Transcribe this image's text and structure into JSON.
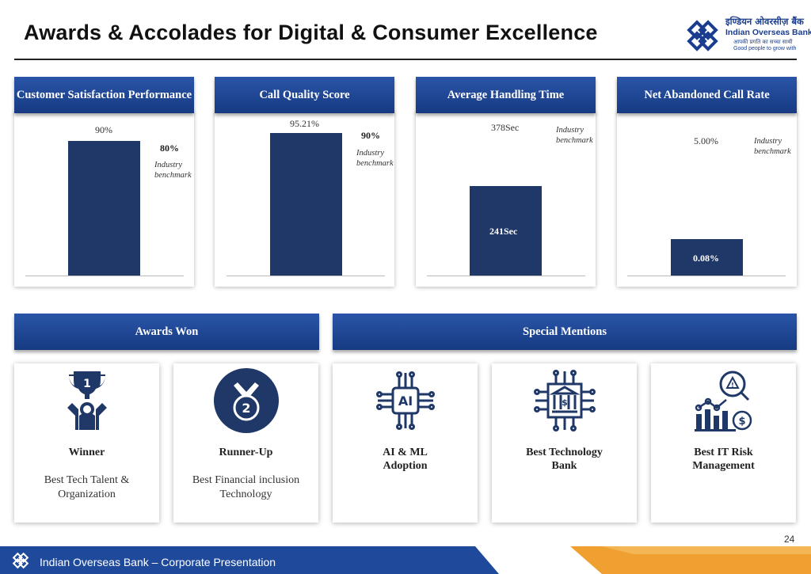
{
  "page": {
    "title": "Awards & Accolades for Digital & Consumer Excellence",
    "page_number": "24",
    "footer": "Indian Overseas Bank – Corporate Presentation"
  },
  "logo": {
    "hindi": "इण्डियन ओवरसीज़ बैंक",
    "english": "Indian Overseas Bank",
    "tagline_hindi": "आपकी प्रगति का सच्चा साथी",
    "tagline_english": "Good people to grow with"
  },
  "colors": {
    "brand_blue": "#1b3d8f",
    "bar": "#1f3868",
    "accent_orange": "#f0a030"
  },
  "metrics": [
    {
      "title": "Customer Satisfaction Performance",
      "value_label": "90%",
      "bench_label": "80%",
      "bench_text": "Industry benchmark"
    },
    {
      "title": "Call Quality Score",
      "value_label": "95.21%",
      "bench_label": "90%",
      "bench_text": "Industry benchmark"
    },
    {
      "title": "Average Handling Time",
      "value_label": "241Sec",
      "bench_label": "378Sec",
      "bench_text": "Industry benchmark"
    },
    {
      "title": "Net Abandoned Call Rate",
      "value_label": "0.08%",
      "bench_label": "5.00%",
      "bench_text": "Industry benchmark"
    }
  ],
  "sections": {
    "awards": "Awards Won",
    "mentions": "Special Mentions"
  },
  "awards": [
    {
      "icon": "trophy-icon",
      "title": "Winner",
      "subtitle": "Best Tech Talent & Organization"
    },
    {
      "icon": "medal-icon",
      "title": "Runner-Up",
      "subtitle": "Best Financial inclusion Technology"
    }
  ],
  "mentions": [
    {
      "icon": "ai-chip-icon",
      "title": "AI & ML Adoption"
    },
    {
      "icon": "bank-circuit-icon",
      "title": "Best Technology Bank"
    },
    {
      "icon": "risk-chart-icon",
      "title": "Best IT Risk Management"
    }
  ],
  "icons": [
    "logo-icon",
    "trophy-icon",
    "medal-icon",
    "ai-chip-icon",
    "bank-circuit-icon",
    "risk-chart-icon"
  ]
}
